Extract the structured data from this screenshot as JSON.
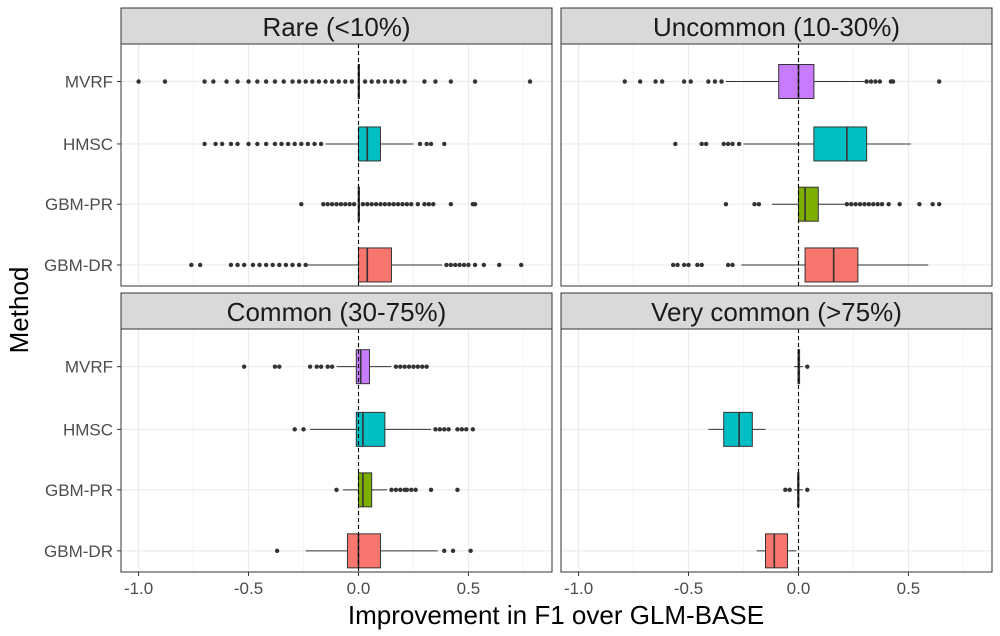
{
  "chart_data": {
    "type": "boxplot",
    "xlabel": "Improvement in F1 over GLM-BASE",
    "ylabel": "Method",
    "xlim": [
      -1.08,
      0.88
    ],
    "x_ticks": [
      -1.0,
      -0.5,
      0.0,
      0.5
    ],
    "x_tick_labels": [
      "-1.0",
      "-0.5",
      "0.0",
      "0.5"
    ],
    "categories": [
      "MVRF",
      "HMSC",
      "GBM-PR",
      "GBM-DR"
    ],
    "reference_line": 0,
    "grid": true,
    "legend": "none",
    "colors": {
      "MVRF": "#C77CFF",
      "HMSC": "#00BFC4",
      "GBM-PR": "#7CAE00",
      "GBM-DR": "#F8766D"
    },
    "panels": [
      {
        "title": "Rare (<10%)",
        "boxes": [
          {
            "method": "MVRF",
            "q1": 0.0,
            "median": 0.0,
            "q3": 0.0,
            "whisker_low": 0.0,
            "whisker_high": 0.0,
            "outliers": [
              -1.0,
              -0.88,
              -0.7,
              -0.66,
              -0.6,
              -0.55,
              -0.5,
              -0.46,
              -0.42,
              -0.38,
              -0.34,
              -0.3,
              -0.27,
              -0.24,
              -0.21,
              -0.18,
              -0.15,
              -0.12,
              -0.09,
              -0.06,
              -0.03,
              0.03,
              0.06,
              0.09,
              0.12,
              0.15,
              0.18,
              0.21,
              0.3,
              0.35,
              0.42,
              0.53,
              0.78
            ]
          },
          {
            "method": "HMSC",
            "q1": 0.0,
            "median": 0.04,
            "q3": 0.1,
            "whisker_low": -0.15,
            "whisker_high": 0.25,
            "outliers": [
              -0.7,
              -0.65,
              -0.62,
              -0.58,
              -0.55,
              -0.5,
              -0.46,
              -0.42,
              -0.38,
              -0.35,
              -0.32,
              -0.29,
              -0.26,
              -0.23,
              -0.2,
              -0.17,
              0.28,
              0.31,
              0.33,
              0.39
            ]
          },
          {
            "method": "GBM-PR",
            "q1": 0.0,
            "median": 0.0,
            "q3": 0.0,
            "whisker_low": 0.0,
            "whisker_high": 0.0,
            "outliers": [
              -0.26,
              -0.16,
              -0.14,
              -0.12,
              -0.1,
              -0.08,
              -0.06,
              -0.04,
              -0.02,
              0.02,
              0.04,
              0.06,
              0.08,
              0.1,
              0.12,
              0.14,
              0.16,
              0.18,
              0.2,
              0.22,
              0.24,
              0.27,
              0.3,
              0.32,
              0.34,
              0.42,
              0.52,
              0.53
            ]
          },
          {
            "method": "GBM-DR",
            "q1": 0.0,
            "median": 0.04,
            "q3": 0.15,
            "whisker_low": -0.23,
            "whisker_high": 0.38,
            "outliers": [
              -0.76,
              -0.72,
              -0.58,
              -0.55,
              -0.52,
              -0.48,
              -0.45,
              -0.42,
              -0.39,
              -0.36,
              -0.33,
              -0.3,
              -0.27,
              -0.24,
              0.4,
              0.42,
              0.44,
              0.46,
              0.48,
              0.5,
              0.53,
              0.57,
              0.64,
              0.74
            ]
          }
        ]
      },
      {
        "title": "Uncommon (10-30%)",
        "boxes": [
          {
            "method": "MVRF",
            "q1": -0.09,
            "median": 0.0,
            "q3": 0.07,
            "whisker_low": -0.33,
            "whisker_high": 0.3,
            "outliers": [
              -0.79,
              -0.72,
              -0.65,
              -0.62,
              -0.52,
              -0.49,
              -0.41,
              -0.38,
              -0.35,
              0.31,
              0.33,
              0.35,
              0.37,
              0.42,
              0.43,
              0.64
            ]
          },
          {
            "method": "HMSC",
            "q1": 0.07,
            "median": 0.22,
            "q3": 0.31,
            "whisker_low": -0.25,
            "whisker_high": 0.51,
            "outliers": [
              -0.56,
              -0.44,
              -0.42,
              -0.34,
              -0.32,
              -0.3,
              -0.27
            ]
          },
          {
            "method": "GBM-PR",
            "q1": 0.0,
            "median": 0.03,
            "q3": 0.09,
            "whisker_low": -0.12,
            "whisker_high": 0.21,
            "outliers": [
              -0.33,
              -0.2,
              -0.18,
              0.22,
              0.24,
              0.26,
              0.28,
              0.3,
              0.32,
              0.34,
              0.36,
              0.38,
              0.41,
              0.46,
              0.55,
              0.61,
              0.64
            ]
          },
          {
            "method": "GBM-DR",
            "q1": 0.03,
            "median": 0.16,
            "q3": 0.27,
            "whisker_low": -0.26,
            "whisker_high": 0.59,
            "outliers": [
              -0.57,
              -0.55,
              -0.52,
              -0.5,
              -0.46,
              -0.44,
              -0.32,
              -0.3
            ]
          }
        ]
      },
      {
        "title": "Common (30-75%)",
        "boxes": [
          {
            "method": "MVRF",
            "q1": -0.01,
            "median": 0.01,
            "q3": 0.05,
            "whisker_low": -0.1,
            "whisker_high": 0.15,
            "outliers": [
              -0.52,
              -0.38,
              -0.36,
              -0.22,
              -0.19,
              -0.17,
              -0.14,
              -0.12,
              0.17,
              0.19,
              0.21,
              0.23,
              0.25,
              0.27,
              0.29,
              0.31
            ]
          },
          {
            "method": "HMSC",
            "q1": -0.01,
            "median": 0.02,
            "q3": 0.12,
            "whisker_low": -0.22,
            "whisker_high": 0.33,
            "outliers": [
              -0.29,
              -0.25,
              0.35,
              0.37,
              0.39,
              0.41,
              0.45,
              0.47,
              0.49,
              0.52
            ]
          },
          {
            "method": "GBM-PR",
            "q1": 0.0,
            "median": 0.02,
            "q3": 0.06,
            "whisker_low": -0.07,
            "whisker_high": 0.13,
            "outliers": [
              -0.1,
              0.15,
              0.17,
              0.19,
              0.21,
              0.22,
              0.24,
              0.26,
              0.33,
              0.45
            ]
          },
          {
            "method": "GBM-DR",
            "q1": -0.05,
            "median": 0.0,
            "q3": 0.1,
            "whisker_low": -0.24,
            "whisker_high": 0.36,
            "outliers": [
              -0.37,
              0.39,
              0.43,
              0.51
            ]
          }
        ]
      },
      {
        "title": "Very common (>75%)",
        "boxes": [
          {
            "method": "MVRF",
            "q1": -0.002,
            "median": 0.0,
            "q3": 0.005,
            "whisker_low": -0.02,
            "whisker_high": 0.02,
            "outliers": [
              0.04
            ]
          },
          {
            "method": "HMSC",
            "q1": -0.34,
            "median": -0.27,
            "q3": -0.21,
            "whisker_low": -0.41,
            "whisker_high": -0.15,
            "outliers": []
          },
          {
            "method": "GBM-PR",
            "q1": -0.004,
            "median": 0.0,
            "q3": 0.002,
            "whisker_low": -0.02,
            "whisker_high": 0.02,
            "outliers": [
              -0.06,
              -0.04,
              0.04
            ]
          },
          {
            "method": "GBM-DR",
            "q1": -0.15,
            "median": -0.11,
            "q3": -0.05,
            "whisker_low": -0.19,
            "whisker_high": -0.01,
            "outliers": []
          }
        ]
      }
    ]
  }
}
